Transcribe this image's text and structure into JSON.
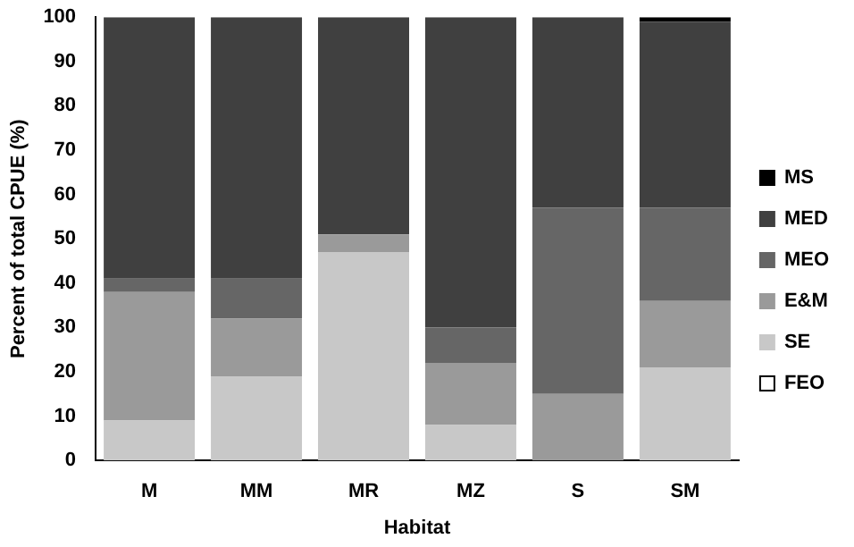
{
  "chart_data": {
    "type": "bar",
    "stacked": true,
    "xlabel": "Habitat",
    "ylabel": "Percent of total CPUE (%)",
    "categories": [
      "M",
      "MM",
      "MR",
      "MZ",
      "S",
      "SM"
    ],
    "series": [
      {
        "name": "FEO",
        "color": "#ffffff",
        "values": [
          0,
          0,
          0,
          0,
          0,
          0
        ]
      },
      {
        "name": "SE",
        "color": "#c8c8c8",
        "values": [
          9,
          19,
          47,
          8,
          0,
          21
        ]
      },
      {
        "name": "E&M",
        "color": "#9a9a9a",
        "values": [
          29,
          13,
          4,
          14,
          15,
          15
        ]
      },
      {
        "name": "MEO",
        "color": "#666666",
        "values": [
          3,
          9,
          0,
          8,
          42,
          21
        ]
      },
      {
        "name": "MED",
        "color": "#404040",
        "values": [
          59,
          59,
          49,
          70,
          43,
          42
        ]
      },
      {
        "name": "MS",
        "color": "#000000",
        "values": [
          0,
          0,
          0,
          0,
          0,
          1
        ]
      }
    ],
    "ylim": [
      0,
      100
    ],
    "yticks": [
      0,
      10,
      20,
      30,
      40,
      50,
      60,
      70,
      80,
      90,
      100
    ],
    "grid": false,
    "legend": "right"
  }
}
